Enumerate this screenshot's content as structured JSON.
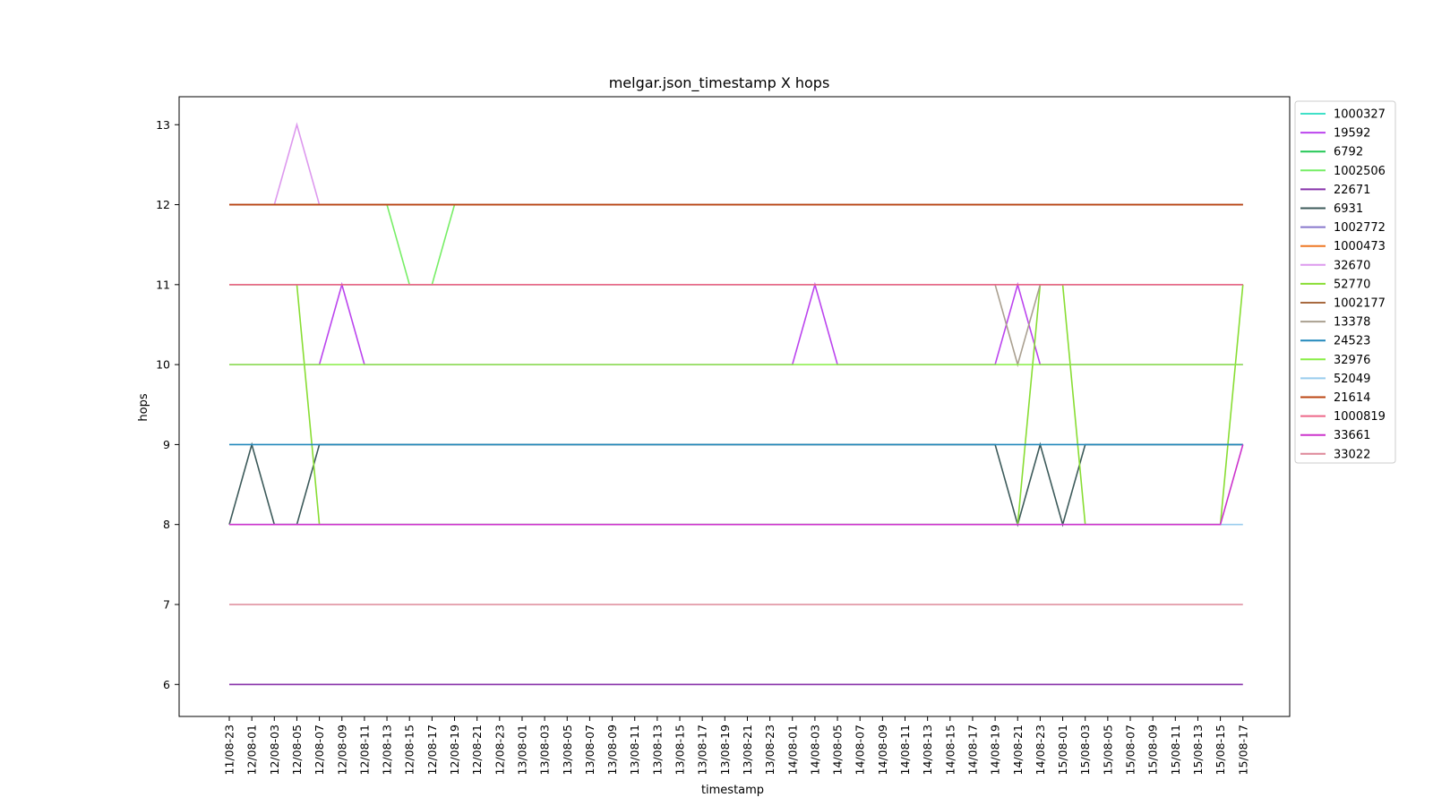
{
  "chart_data": {
    "type": "line",
    "title": "melgar.json_timestamp X hops",
    "xlabel": "timestamp",
    "ylabel": "hops",
    "ylim": [
      5.6,
      13.35
    ],
    "yticks": [
      6,
      7,
      8,
      9,
      10,
      11,
      12,
      13
    ],
    "grid": false,
    "legend_position": "outside-right",
    "x": [
      "11/08-23",
      "12/08-01",
      "12/08-03",
      "12/08-05",
      "12/08-07",
      "12/08-09",
      "12/08-11",
      "12/08-13",
      "12/08-15",
      "12/08-17",
      "12/08-19",
      "12/08-21",
      "12/08-23",
      "13/08-01",
      "13/08-03",
      "13/08-05",
      "13/08-07",
      "13/08-09",
      "13/08-11",
      "13/08-13",
      "13/08-15",
      "13/08-17",
      "13/08-19",
      "13/08-21",
      "13/08-23",
      "14/08-01",
      "14/08-03",
      "14/08-05",
      "14/08-07",
      "14/08-09",
      "14/08-11",
      "14/08-13",
      "14/08-15",
      "14/08-17",
      "14/08-19",
      "14/08-21",
      "14/08-23",
      "15/08-01",
      "15/08-03",
      "15/08-05",
      "15/08-07",
      "15/08-09",
      "15/08-11",
      "15/08-13",
      "15/08-15",
      "15/08-17"
    ],
    "series": [
      {
        "name": "1000327",
        "color": "#40e0c8",
        "baseline": 11,
        "changes": []
      },
      {
        "name": "19592",
        "color": "#bb44ee",
        "baseline": 10,
        "changes": [
          [
            5,
            11
          ],
          [
            26,
            11
          ],
          [
            35,
            11
          ]
        ]
      },
      {
        "name": "6792",
        "color": "#22c755",
        "baseline": 12,
        "changes": []
      },
      {
        "name": "1002506",
        "color": "#77ee66",
        "baseline": 12,
        "changes": [
          [
            8,
            11
          ],
          [
            9,
            11
          ]
        ]
      },
      {
        "name": "22671",
        "color": "#8833aa",
        "baseline": 6,
        "changes": []
      },
      {
        "name": "6931",
        "color": "#3c5a5a",
        "baseline": 9,
        "changes": [
          [
            0,
            8
          ],
          [
            2,
            8
          ],
          [
            3,
            8
          ],
          [
            35,
            8
          ],
          [
            37,
            8
          ]
        ]
      },
      {
        "name": "1002772",
        "color": "#8877cc",
        "baseline": 12,
        "changes": []
      },
      {
        "name": "1000473",
        "color": "#ee7722",
        "baseline": 12,
        "changes": []
      },
      {
        "name": "32670",
        "color": "#dd99ee",
        "baseline": 12,
        "changes": [
          [
            3,
            13
          ]
        ]
      },
      {
        "name": "52770",
        "color": "#88dd33",
        "baseline": 8,
        "changes": [
          [
            0,
            11
          ],
          [
            1,
            11
          ],
          [
            2,
            11
          ],
          [
            3,
            11
          ],
          [
            36,
            11
          ],
          [
            37,
            11
          ],
          [
            45,
            11
          ]
        ]
      },
      {
        "name": "1002177",
        "color": "#a86a40",
        "baseline": 12,
        "changes": []
      },
      {
        "name": "13378",
        "color": "#aaa090",
        "baseline": 11,
        "changes": [
          [
            35,
            10
          ]
        ]
      },
      {
        "name": "24523",
        "color": "#2288bb",
        "baseline": 9,
        "changes": []
      },
      {
        "name": "32976",
        "color": "#88ee44",
        "baseline": 10,
        "changes": []
      },
      {
        "name": "52049",
        "color": "#99ccee",
        "baseline": 8,
        "changes": []
      },
      {
        "name": "21614",
        "color": "#bb4411",
        "baseline": 12,
        "changes": []
      },
      {
        "name": "1000819",
        "color": "#ee6688",
        "baseline": 11,
        "changes": []
      },
      {
        "name": "33661",
        "color": "#cc33cc",
        "baseline": 8,
        "changes": [
          [
            45,
            9
          ]
        ]
      },
      {
        "name": "33022",
        "color": "#dd8899",
        "baseline": 7,
        "changes": []
      }
    ]
  }
}
